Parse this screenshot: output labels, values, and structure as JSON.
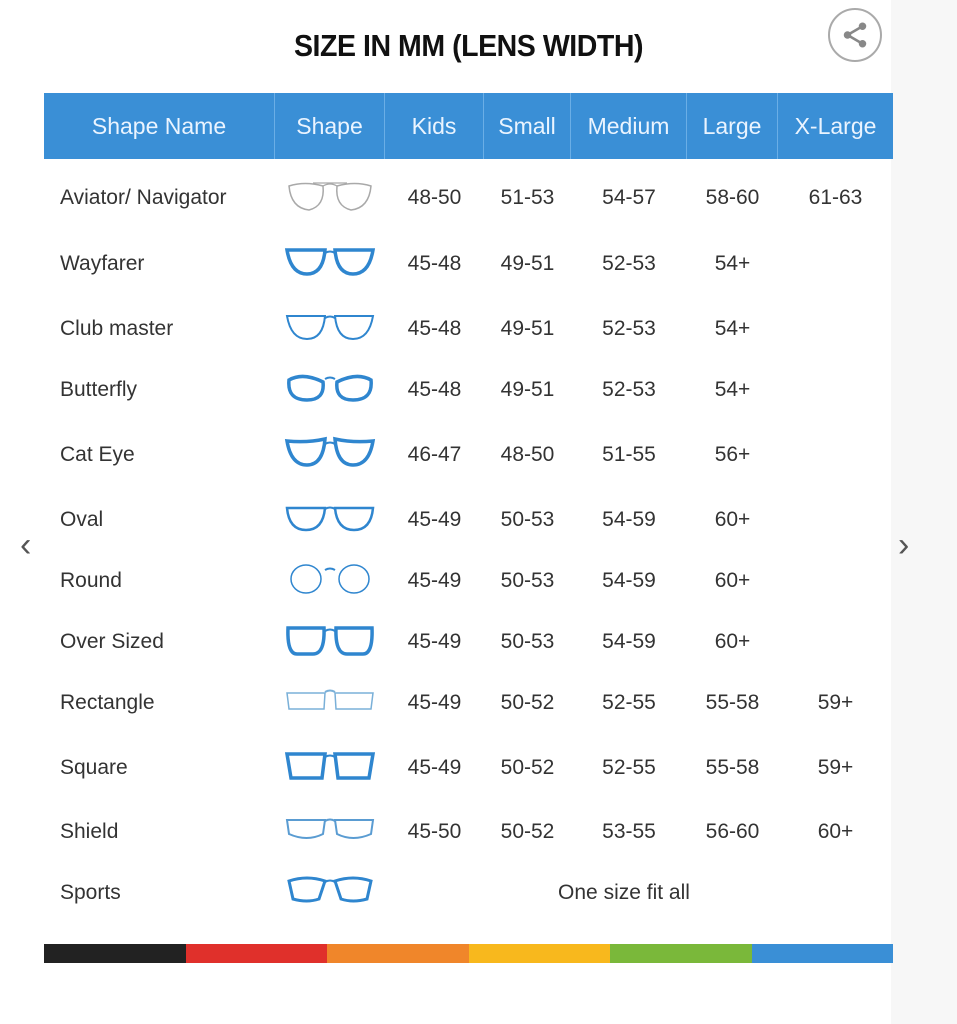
{
  "title": "SIZE IN MM (LENS WIDTH)",
  "share_icon": "share-icon",
  "columns": [
    "Shape Name",
    "Shape",
    "Kids",
    "Small",
    "Medium",
    "Large",
    "X-Large"
  ],
  "rows": [
    {
      "name": "Aviator/ Navigator",
      "icon": "aviator",
      "sizes": [
        "48-50",
        "51-53",
        "54-57",
        "58-60",
        "61-63"
      ]
    },
    {
      "name": "Wayfarer",
      "icon": "wayfarer",
      "sizes": [
        "45-48",
        "49-51",
        "52-53",
        "54+",
        ""
      ]
    },
    {
      "name": "Club master",
      "icon": "clubmaster",
      "sizes": [
        "45-48",
        "49-51",
        "52-53",
        "54+",
        ""
      ]
    },
    {
      "name": "Butterfly",
      "icon": "butterfly",
      "sizes": [
        "45-48",
        "49-51",
        "52-53",
        "54+",
        ""
      ]
    },
    {
      "name": "Cat Eye",
      "icon": "cateye",
      "sizes": [
        "46-47",
        "48-50",
        "51-55",
        "56+",
        ""
      ]
    },
    {
      "name": "Oval",
      "icon": "oval",
      "sizes": [
        "45-49",
        "50-53",
        "54-59",
        "60+",
        ""
      ]
    },
    {
      "name": "Round",
      "icon": "round",
      "sizes": [
        "45-49",
        "50-53",
        "54-59",
        "60+",
        ""
      ]
    },
    {
      "name": "Over Sized",
      "icon": "oversized",
      "sizes": [
        "45-49",
        "50-53",
        "54-59",
        "60+",
        ""
      ]
    },
    {
      "name": "Rectangle",
      "icon": "rectangle",
      "sizes": [
        "45-49",
        "50-52",
        "52-55",
        "55-58",
        "59+"
      ]
    },
    {
      "name": "Square",
      "icon": "square",
      "sizes": [
        "45-49",
        "50-52",
        "52-55",
        "55-58",
        "59+"
      ]
    },
    {
      "name": "Shield",
      "icon": "shield",
      "sizes": [
        "45-50",
        "50-52",
        "53-55",
        "56-60",
        "60+"
      ]
    },
    {
      "name": "Sports",
      "icon": "sports",
      "span_text": "One size fit all"
    }
  ],
  "colors": {
    "header": "#3a8fd6",
    "frame_blue": "#2f86cf",
    "frame_gray": "#a9a9a9",
    "bar": [
      "#222222",
      "#e0302b",
      "#f0862a",
      "#f8b81d",
      "#7ab83a",
      "#3a8fd6"
    ]
  },
  "nav": {
    "prev_icon": "chevron-left-icon",
    "next_icon": "chevron-right-icon"
  }
}
